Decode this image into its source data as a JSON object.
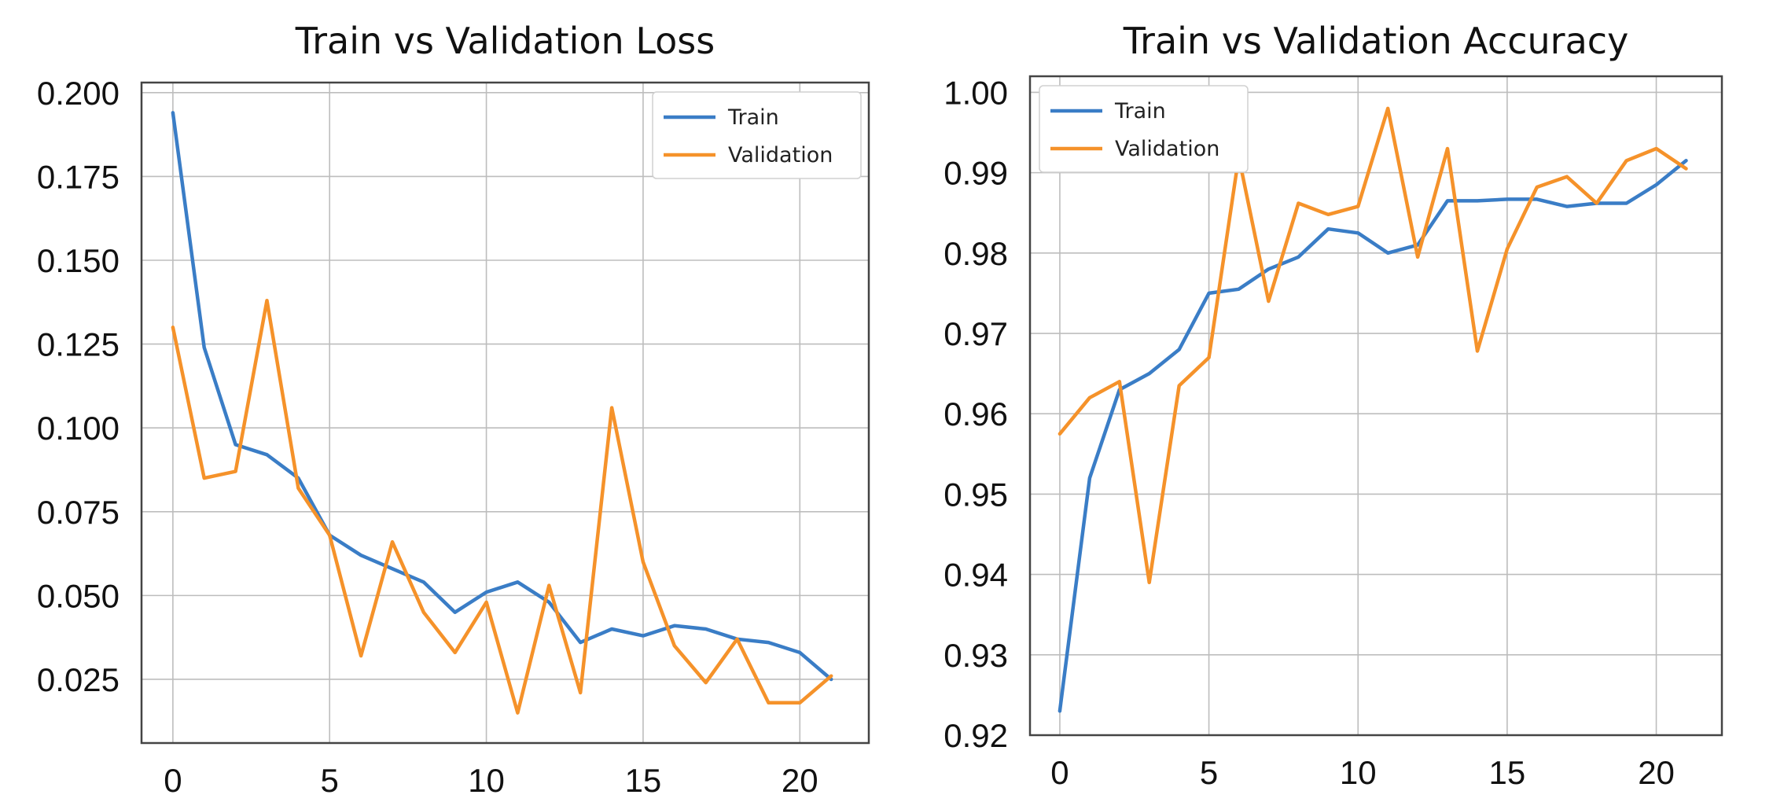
{
  "colors": {
    "train": "#3a7dc6",
    "validation": "#f5922a"
  },
  "chart_data": [
    {
      "type": "line",
      "title": "Train vs Validation Loss",
      "xlabel": "",
      "ylabel": "",
      "xlim": [
        -1,
        22.2
      ],
      "ylim": [
        0.006,
        0.203
      ],
      "xticks": [
        0,
        5,
        10,
        15,
        20
      ],
      "xtick_labels": [
        "0",
        "5",
        "10",
        "15",
        "20"
      ],
      "yticks": [
        0.025,
        0.05,
        0.075,
        0.1,
        0.125,
        0.15,
        0.175,
        0.2
      ],
      "ytick_labels": [
        "0.025",
        "0.050",
        "0.075",
        "0.100",
        "0.125",
        "0.150",
        "0.175",
        "0.200"
      ],
      "grid": true,
      "legend_position": "top-right",
      "x": [
        0,
        1,
        2,
        3,
        4,
        5,
        6,
        7,
        8,
        9,
        10,
        11,
        12,
        13,
        14,
        15,
        16,
        17,
        18,
        19,
        20,
        21
      ],
      "series": [
        {
          "name": "Train",
          "color_key": "train",
          "values": [
            0.194,
            0.124,
            0.095,
            0.092,
            0.085,
            0.068,
            0.062,
            0.058,
            0.054,
            0.045,
            0.051,
            0.054,
            0.048,
            0.036,
            0.04,
            0.038,
            0.041,
            0.04,
            0.037,
            0.036,
            0.033,
            0.025
          ]
        },
        {
          "name": "Validation",
          "color_key": "validation",
          "values": [
            0.13,
            0.085,
            0.087,
            0.138,
            0.082,
            0.068,
            0.032,
            0.066,
            0.045,
            0.033,
            0.048,
            0.015,
            0.053,
            0.021,
            0.106,
            0.06,
            0.035,
            0.024,
            0.037,
            0.018,
            0.018,
            0.026
          ]
        }
      ]
    },
    {
      "type": "line",
      "title": "Train vs Validation Accuracy",
      "xlabel": "",
      "ylabel": "",
      "xlim": [
        -1,
        22.2
      ],
      "ylim": [
        0.92,
        1.002
      ],
      "xticks": [
        0,
        5,
        10,
        15,
        20
      ],
      "xtick_labels": [
        "0",
        "5",
        "10",
        "15",
        "20"
      ],
      "yticks": [
        0.92,
        0.93,
        0.94,
        0.95,
        0.96,
        0.97,
        0.98,
        0.99,
        1.0
      ],
      "ytick_labels": [
        "0.92",
        "0.93",
        "0.94",
        "0.95",
        "0.96",
        "0.97",
        "0.98",
        "0.99",
        "1.00"
      ],
      "grid": true,
      "legend_position": "top-left",
      "x": [
        0,
        1,
        2,
        3,
        4,
        5,
        6,
        7,
        8,
        9,
        10,
        11,
        12,
        13,
        14,
        15,
        16,
        17,
        18,
        19,
        20,
        21
      ],
      "series": [
        {
          "name": "Train",
          "color_key": "train",
          "values": [
            0.923,
            0.952,
            0.963,
            0.965,
            0.968,
            0.975,
            0.9755,
            0.978,
            0.9795,
            0.983,
            0.9825,
            0.98,
            0.981,
            0.9865,
            0.9865,
            0.9867,
            0.9867,
            0.9858,
            0.9862,
            0.9862,
            0.9885,
            0.9915
          ]
        },
        {
          "name": "Validation",
          "color_key": "validation",
          "values": [
            0.9575,
            0.962,
            0.964,
            0.939,
            0.9635,
            0.967,
            0.992,
            0.974,
            0.9862,
            0.9848,
            0.9858,
            0.998,
            0.9795,
            0.993,
            0.9678,
            0.9805,
            0.9882,
            0.9895,
            0.9862,
            0.9915,
            0.993,
            0.9905
          ]
        }
      ]
    }
  ]
}
